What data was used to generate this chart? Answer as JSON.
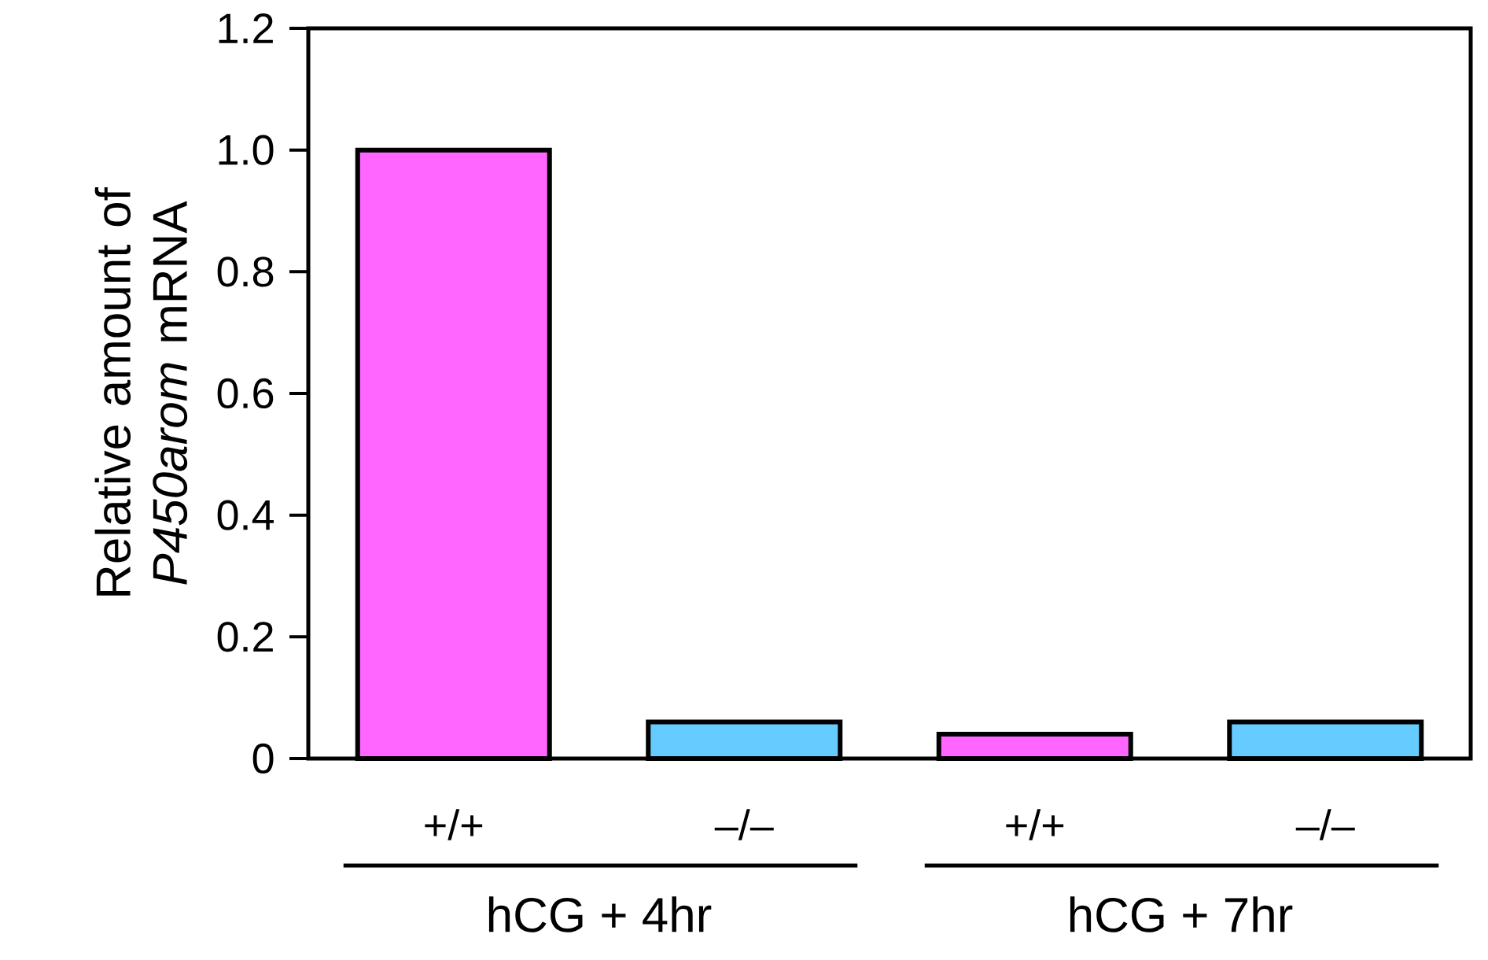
{
  "chart_data": {
    "type": "bar",
    "ylabel": "Relative amount of *P450arom* mRNA",
    "categories": [
      "+/+",
      "–/–",
      "+/+",
      "–/–"
    ],
    "values": [
      1.0,
      0.06,
      0.04,
      0.06
    ],
    "colors": [
      "#ff66ff",
      "#66ccff",
      "#ff66ff",
      "#66ccff"
    ],
    "ylim": [
      0,
      1.2
    ],
    "yticks": [
      0,
      0.2,
      0.4,
      0.6,
      0.8,
      {
        "value": 1.0,
        "label": "1.0"
      },
      1.2
    ],
    "annotations": [
      "hCG + 4hr",
      "hCG + 7hr"
    ],
    "grid": false
  }
}
